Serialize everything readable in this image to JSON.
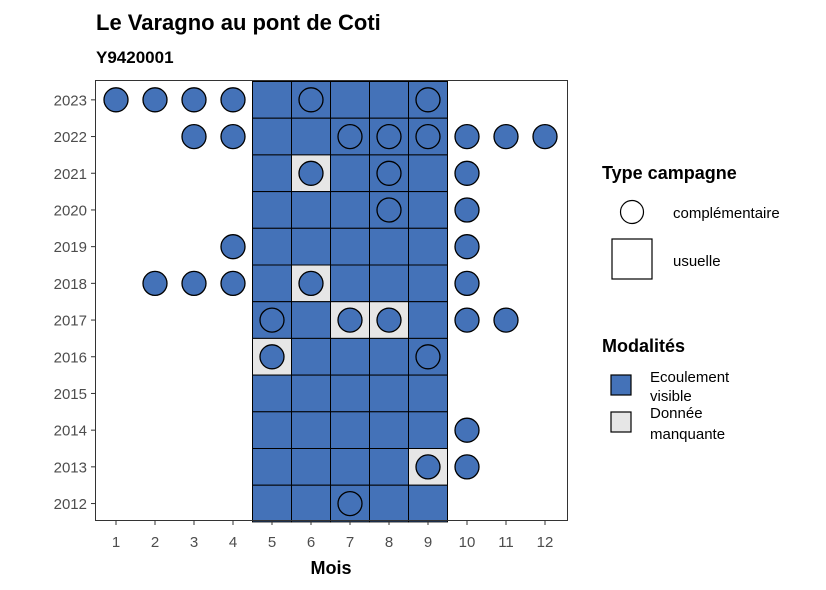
{
  "chart_data": {
    "type": "heatmap",
    "title": "Le Varagno au pont de Coti",
    "subtitle": "Y9420001",
    "xlabel": "Mois",
    "ylabel": "",
    "x_categories": [
      "1",
      "2",
      "3",
      "4",
      "5",
      "6",
      "7",
      "8",
      "9",
      "10",
      "11",
      "12"
    ],
    "y_categories": [
      "2012",
      "2013",
      "2014",
      "2015",
      "2016",
      "2017",
      "2018",
      "2019",
      "2020",
      "2021",
      "2022",
      "2023"
    ],
    "grid": false,
    "legends": {
      "campaign": {
        "title": "Type campagne",
        "items": [
          {
            "key": "complementaire",
            "label": "complémentaire",
            "shape": "circle"
          },
          {
            "key": "usuelle",
            "label": "usuelle",
            "shape": "square"
          }
        ]
      },
      "modalite": {
        "title": "Modalités",
        "items": [
          {
            "key": "ecoulement",
            "label_lines": [
              "Ecoulement",
              "visible"
            ],
            "color": "#4472b8"
          },
          {
            "key": "manquante",
            "label_lines": [
              "Donnée",
              "manquante"
            ],
            "color": "#e6e6e6"
          }
        ]
      }
    },
    "usuelle": [
      {
        "year": "2023",
        "month": 5,
        "modalite": "ecoulement"
      },
      {
        "year": "2023",
        "month": 6,
        "modalite": "ecoulement"
      },
      {
        "year": "2023",
        "month": 7,
        "modalite": "ecoulement"
      },
      {
        "year": "2023",
        "month": 8,
        "modalite": "ecoulement"
      },
      {
        "year": "2023",
        "month": 9,
        "modalite": "ecoulement"
      },
      {
        "year": "2022",
        "month": 5,
        "modalite": "ecoulement"
      },
      {
        "year": "2022",
        "month": 6,
        "modalite": "ecoulement"
      },
      {
        "year": "2022",
        "month": 7,
        "modalite": "ecoulement"
      },
      {
        "year": "2022",
        "month": 8,
        "modalite": "ecoulement"
      },
      {
        "year": "2022",
        "month": 9,
        "modalite": "ecoulement"
      },
      {
        "year": "2021",
        "month": 5,
        "modalite": "ecoulement"
      },
      {
        "year": "2021",
        "month": 6,
        "modalite": "manquante"
      },
      {
        "year": "2021",
        "month": 7,
        "modalite": "ecoulement"
      },
      {
        "year": "2021",
        "month": 8,
        "modalite": "ecoulement"
      },
      {
        "year": "2021",
        "month": 9,
        "modalite": "ecoulement"
      },
      {
        "year": "2020",
        "month": 5,
        "modalite": "ecoulement"
      },
      {
        "year": "2020",
        "month": 6,
        "modalite": "ecoulement"
      },
      {
        "year": "2020",
        "month": 7,
        "modalite": "ecoulement"
      },
      {
        "year": "2020",
        "month": 8,
        "modalite": "ecoulement"
      },
      {
        "year": "2020",
        "month": 9,
        "modalite": "ecoulement"
      },
      {
        "year": "2019",
        "month": 5,
        "modalite": "ecoulement"
      },
      {
        "year": "2019",
        "month": 6,
        "modalite": "ecoulement"
      },
      {
        "year": "2019",
        "month": 7,
        "modalite": "ecoulement"
      },
      {
        "year": "2019",
        "month": 8,
        "modalite": "ecoulement"
      },
      {
        "year": "2019",
        "month": 9,
        "modalite": "ecoulement"
      },
      {
        "year": "2018",
        "month": 5,
        "modalite": "ecoulement"
      },
      {
        "year": "2018",
        "month": 6,
        "modalite": "manquante"
      },
      {
        "year": "2018",
        "month": 7,
        "modalite": "ecoulement"
      },
      {
        "year": "2018",
        "month": 8,
        "modalite": "ecoulement"
      },
      {
        "year": "2018",
        "month": 9,
        "modalite": "ecoulement"
      },
      {
        "year": "2017",
        "month": 5,
        "modalite": "ecoulement"
      },
      {
        "year": "2017",
        "month": 6,
        "modalite": "ecoulement"
      },
      {
        "year": "2017",
        "month": 7,
        "modalite": "manquante"
      },
      {
        "year": "2017",
        "month": 8,
        "modalite": "manquante"
      },
      {
        "year": "2017",
        "month": 9,
        "modalite": "ecoulement"
      },
      {
        "year": "2016",
        "month": 5,
        "modalite": "manquante"
      },
      {
        "year": "2016",
        "month": 6,
        "modalite": "ecoulement"
      },
      {
        "year": "2016",
        "month": 7,
        "modalite": "ecoulement"
      },
      {
        "year": "2016",
        "month": 8,
        "modalite": "ecoulement"
      },
      {
        "year": "2016",
        "month": 9,
        "modalite": "ecoulement"
      },
      {
        "year": "2015",
        "month": 5,
        "modalite": "ecoulement"
      },
      {
        "year": "2015",
        "month": 6,
        "modalite": "ecoulement"
      },
      {
        "year": "2015",
        "month": 7,
        "modalite": "ecoulement"
      },
      {
        "year": "2015",
        "month": 8,
        "modalite": "ecoulement"
      },
      {
        "year": "2015",
        "month": 9,
        "modalite": "ecoulement"
      },
      {
        "year": "2014",
        "month": 5,
        "modalite": "ecoulement"
      },
      {
        "year": "2014",
        "month": 6,
        "modalite": "ecoulement"
      },
      {
        "year": "2014",
        "month": 7,
        "modalite": "ecoulement"
      },
      {
        "year": "2014",
        "month": 8,
        "modalite": "ecoulement"
      },
      {
        "year": "2014",
        "month": 9,
        "modalite": "ecoulement"
      },
      {
        "year": "2013",
        "month": 5,
        "modalite": "ecoulement"
      },
      {
        "year": "2013",
        "month": 6,
        "modalite": "ecoulement"
      },
      {
        "year": "2013",
        "month": 7,
        "modalite": "ecoulement"
      },
      {
        "year": "2013",
        "month": 8,
        "modalite": "ecoulement"
      },
      {
        "year": "2013",
        "month": 9,
        "modalite": "manquante"
      },
      {
        "year": "2012",
        "month": 5,
        "modalite": "ecoulement"
      },
      {
        "year": "2012",
        "month": 6,
        "modalite": "ecoulement"
      },
      {
        "year": "2012",
        "month": 7,
        "modalite": "ecoulement"
      },
      {
        "year": "2012",
        "month": 8,
        "modalite": "ecoulement"
      },
      {
        "year": "2012",
        "month": 9,
        "modalite": "ecoulement"
      }
    ],
    "complementaire": [
      {
        "year": "2023",
        "month": 1,
        "modalite": "ecoulement"
      },
      {
        "year": "2023",
        "month": 2,
        "modalite": "ecoulement"
      },
      {
        "year": "2023",
        "month": 3,
        "modalite": "ecoulement"
      },
      {
        "year": "2023",
        "month": 4,
        "modalite": "ecoulement"
      },
      {
        "year": "2023",
        "month": 6,
        "modalite": "ecoulement"
      },
      {
        "year": "2023",
        "month": 9,
        "modalite": "ecoulement"
      },
      {
        "year": "2022",
        "month": 3,
        "modalite": "ecoulement"
      },
      {
        "year": "2022",
        "month": 4,
        "modalite": "ecoulement"
      },
      {
        "year": "2022",
        "month": 7,
        "modalite": "ecoulement"
      },
      {
        "year": "2022",
        "month": 8,
        "modalite": "ecoulement"
      },
      {
        "year": "2022",
        "month": 9,
        "modalite": "ecoulement"
      },
      {
        "year": "2022",
        "month": 10,
        "modalite": "ecoulement"
      },
      {
        "year": "2022",
        "month": 11,
        "modalite": "ecoulement"
      },
      {
        "year": "2022",
        "month": 12,
        "modalite": "ecoulement"
      },
      {
        "year": "2021",
        "month": 6,
        "modalite": "ecoulement"
      },
      {
        "year": "2021",
        "month": 8,
        "modalite": "ecoulement"
      },
      {
        "year": "2021",
        "month": 10,
        "modalite": "ecoulement"
      },
      {
        "year": "2020",
        "month": 8,
        "modalite": "ecoulement"
      },
      {
        "year": "2020",
        "month": 10,
        "modalite": "ecoulement"
      },
      {
        "year": "2019",
        "month": 4,
        "modalite": "ecoulement"
      },
      {
        "year": "2019",
        "month": 10,
        "modalite": "ecoulement"
      },
      {
        "year": "2018",
        "month": 2,
        "modalite": "ecoulement"
      },
      {
        "year": "2018",
        "month": 3,
        "modalite": "ecoulement"
      },
      {
        "year": "2018",
        "month": 4,
        "modalite": "ecoulement"
      },
      {
        "year": "2018",
        "month": 6,
        "modalite": "ecoulement"
      },
      {
        "year": "2018",
        "month": 10,
        "modalite": "ecoulement"
      },
      {
        "year": "2017",
        "month": 5,
        "modalite": "ecoulement"
      },
      {
        "year": "2017",
        "month": 7,
        "modalite": "ecoulement"
      },
      {
        "year": "2017",
        "month": 8,
        "modalite": "ecoulement"
      },
      {
        "year": "2017",
        "month": 10,
        "modalite": "ecoulement"
      },
      {
        "year": "2017",
        "month": 11,
        "modalite": "ecoulement"
      },
      {
        "year": "2016",
        "month": 5,
        "modalite": "ecoulement"
      },
      {
        "year": "2016",
        "month": 9,
        "modalite": "ecoulement"
      },
      {
        "year": "2014",
        "month": 10,
        "modalite": "ecoulement"
      },
      {
        "year": "2013",
        "month": 9,
        "modalite": "ecoulement"
      },
      {
        "year": "2013",
        "month": 10,
        "modalite": "ecoulement"
      },
      {
        "year": "2012",
        "month": 7,
        "modalite": "ecoulement"
      }
    ]
  }
}
